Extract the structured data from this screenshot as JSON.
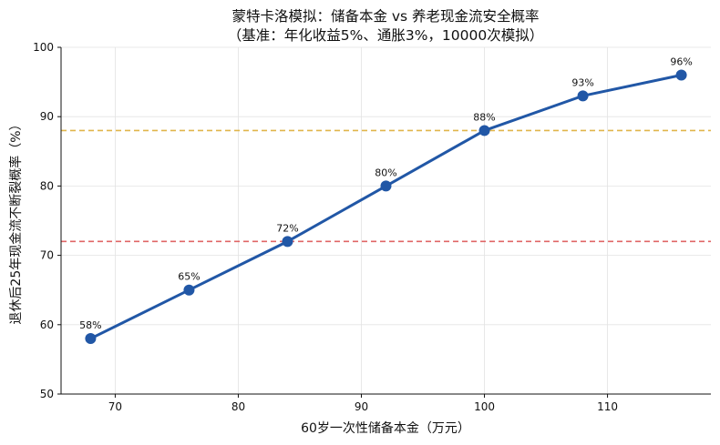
{
  "chart_data": {
    "type": "line",
    "title_line1": "蒙特卡洛模拟：储备本金 vs 养老现金流安全概率",
    "title_line2": "（基准：年化收益5%、通胀3%，10000次模拟）",
    "xlabel": "60岁一次性储备本金（万元）",
    "ylabel": "退休后25年现金流不断裂概率（%）",
    "xlim": [
      65.6,
      118.4
    ],
    "ylim": [
      50,
      100
    ],
    "xticks": [
      70,
      80,
      90,
      100,
      110
    ],
    "yticks": [
      50,
      60,
      70,
      80,
      90,
      100
    ],
    "grid": true,
    "series": [
      {
        "color": "#2157a6",
        "x": [
          68,
          76,
          84,
          92,
          100,
          108,
          116
        ],
        "y": [
          58,
          65,
          72,
          80,
          88,
          93,
          96
        ],
        "labels": [
          "58%",
          "65%",
          "72%",
          "80%",
          "88%",
          "93%",
          "96%"
        ]
      }
    ],
    "reference_lines": [
      {
        "y": 88,
        "color": "#e0b54a",
        "style": "dashed"
      },
      {
        "y": 72,
        "color": "#e06666",
        "style": "dashed"
      }
    ]
  }
}
